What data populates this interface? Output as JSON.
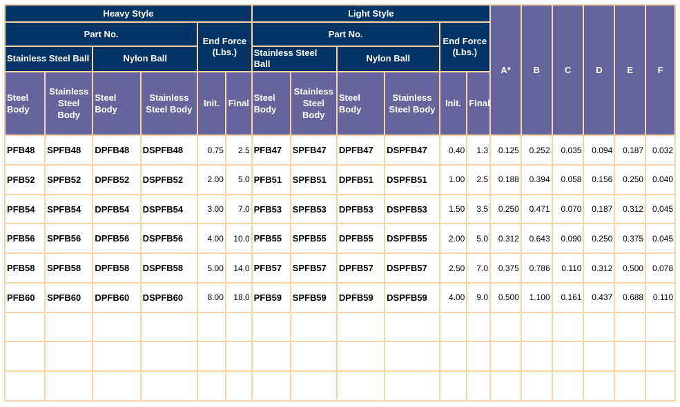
{
  "headers": {
    "heavy_style": "Heavy Style",
    "light_style": "Light Style",
    "part_no": "Part No.",
    "end_force_heavy": "End Force (Lbs.)",
    "end_force_light": "End Force (Lbs.)",
    "ss_ball": "Stainless Steel Ball",
    "nylon_ball": "Nylon Ball",
    "steel_body": "Steel Body",
    "stainless_body": "Stainless Steel Body",
    "light_stainless_body": "Stainless Steel Body",
    "init": "Init.",
    "final": "Final",
    "dims": [
      "A*",
      "B",
      "C",
      "D",
      "E",
      "F"
    ]
  },
  "rows": [
    [
      "PFB48",
      "SPFB48",
      "DPFB48",
      "DSPFB48",
      "0.75",
      "2.5",
      "PFB47",
      "SPFB47",
      "DPFB47",
      "DSPFB47",
      "0.40",
      "1.3",
      "0.125",
      "0.252",
      "0.035",
      "0.094",
      "0.187",
      "0.032"
    ],
    [
      "PFB52",
      "SPFB52",
      "DPFB52",
      "DSPFB52",
      "2.00",
      "5.0",
      "PFB51",
      "SPFB51",
      "DPFB51",
      "DSPFB51",
      "1.00",
      "2.5",
      "0.188",
      "0.394",
      "0.058",
      "0.156",
      "0.250",
      "0.040"
    ],
    [
      "PFB54",
      "SPFB54",
      "DPFB54",
      "DSPFB54",
      "3.00",
      "7.0",
      "PFB53",
      "SPFB53",
      "DPFB53",
      "DSPFB53",
      "1.50",
      "3.5",
      "0.250",
      "0.471",
      "0.070",
      "0.187",
      "0.312",
      "0.045"
    ],
    [
      "PFB56",
      "SPFB56",
      "DPFB56",
      "DSPFB56",
      "4.00",
      "10.0",
      "PFB55",
      "SPFB55",
      "DPFB55",
      "DSPFB55",
      "2.00",
      "5.0",
      "0.312",
      "0.643",
      "0.090",
      "0.250",
      "0.375",
      "0.045"
    ],
    [
      "PFB58",
      "SPFB58",
      "DPFB58",
      "DSPFB58",
      "5.00",
      "14.0",
      "PFB57",
      "SPFB57",
      "DPFB57",
      "DSPFB57",
      "2.50",
      "7.0",
      "0.375",
      "0.786",
      "0.110",
      "0.312",
      "0.500",
      "0.078"
    ],
    [
      "PFB60",
      "SPFB60",
      "DPFB60",
      "DSPFB60",
      "8.00",
      "18.0",
      "PFB59",
      "SPFB59",
      "DPFB59",
      "DSPFB59",
      "4.00",
      "9.0",
      "0.500",
      "1.100",
      "0.161",
      "0.437",
      "0.688",
      "0.110"
    ]
  ]
}
